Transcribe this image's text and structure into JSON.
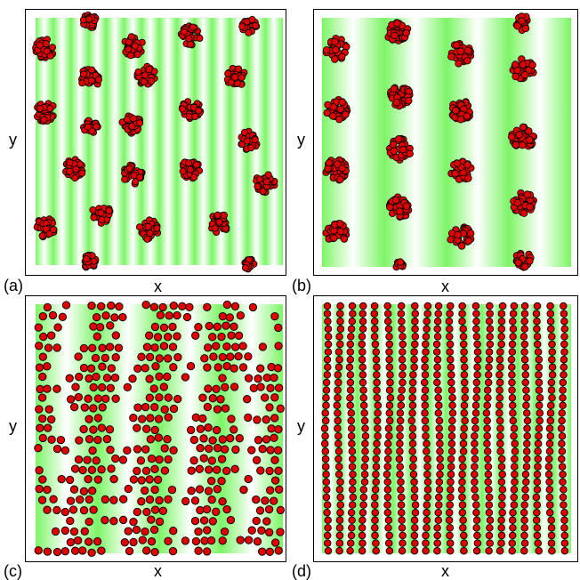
{
  "colors": {
    "stripe": "#7CF566",
    "stripe_light": "#FFFFFF",
    "particle_fill": "#E00000",
    "particle_stroke": "#000000",
    "frame": "#000000"
  },
  "panels": [
    {
      "label": "(a)",
      "xlabel": "x",
      "ylabel": "y",
      "stripe_count": 14,
      "arrangement": "clusters"
    },
    {
      "label": "(b)",
      "xlabel": "x",
      "ylabel": "y",
      "stripe_count": 4,
      "arrangement": "clusters"
    },
    {
      "label": "(c)",
      "xlabel": "x",
      "ylabel": "y",
      "stripe_count": 4,
      "arrangement": "dense bands"
    },
    {
      "label": "(d)",
      "xlabel": "x",
      "ylabel": "y",
      "stripe_count": 14,
      "arrangement": "single-file lines"
    }
  ]
}
